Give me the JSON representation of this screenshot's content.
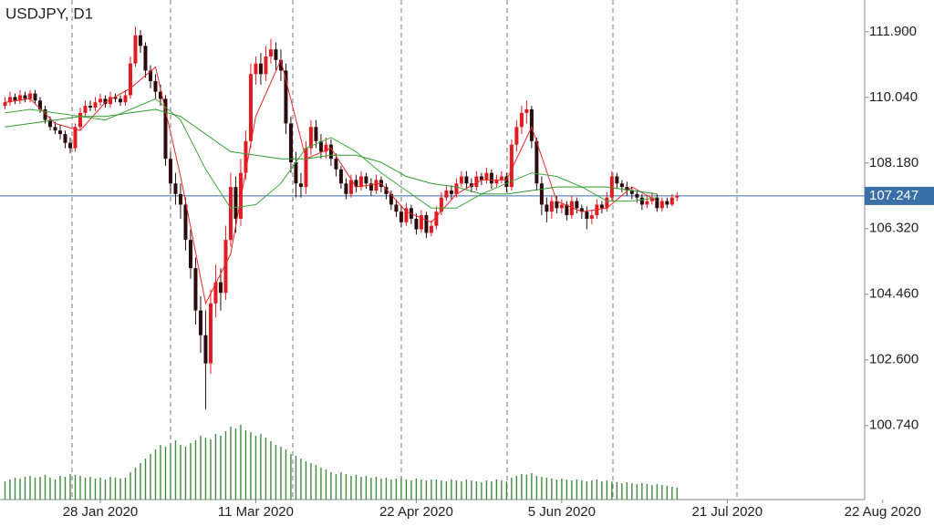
{
  "chart_data": {
    "type": "candlestick",
    "title": "USDJPY, D1",
    "up_color": "#e21b22",
    "down_color": "#2a0c0c",
    "open": [
      109.8,
      109.9,
      110.05,
      109.95,
      110.1,
      110.0,
      110.15,
      109.95,
      109.7,
      109.4,
      109.2,
      109.1,
      109.0,
      108.75,
      108.6,
      109.2,
      109.6,
      109.8,
      109.75,
      109.9,
      110.0,
      109.85,
      110.05,
      110.0,
      109.9,
      110.1,
      111.0,
      111.8,
      111.5,
      110.8,
      110.5,
      110.2,
      110.0,
      108.3,
      107.6,
      107.3,
      107.0,
      106.0,
      105.2,
      104.0,
      103.3,
      102.5,
      104.2,
      104.8,
      104.5,
      106.0,
      107.5,
      106.6,
      107.9,
      108.8,
      110.7,
      111.0,
      110.7,
      111.2,
      111.4,
      111.1,
      110.8,
      109.3,
      108.2,
      107.6,
      107.5,
      108.6,
      109.2,
      108.8,
      108.5,
      108.7,
      108.3,
      108.0,
      107.6,
      107.3,
      107.7,
      107.5,
      107.8,
      107.6,
      107.4,
      107.7,
      107.5,
      107.3,
      107.0,
      106.8,
      106.5,
      106.9,
      106.6,
      106.3,
      106.7,
      106.2,
      106.4,
      106.8,
      107.2,
      107.4,
      107.3,
      107.6,
      107.8,
      107.6,
      107.5,
      107.8,
      107.7,
      107.9,
      107.6,
      107.7,
      107.8,
      107.5,
      108.7,
      109.2,
      109.6,
      109.7,
      108.8,
      107.6,
      107.0,
      106.8,
      107.1,
      106.9,
      107.0,
      106.7,
      107.1,
      106.9,
      106.8,
      106.6,
      106.7,
      107.0,
      106.9,
      107.2,
      107.8,
      107.6,
      107.5,
      107.4,
      107.3,
      107.2,
      107.0,
      107.1,
      107.2,
      106.9,
      107.1,
      107.0,
      107.2
    ],
    "high": [
      110.05,
      110.2,
      110.15,
      110.25,
      110.2,
      110.25,
      110.25,
      110.05,
      109.8,
      109.5,
      109.35,
      109.25,
      109.1,
      108.9,
      109.3,
      109.75,
      109.95,
      109.95,
      110.05,
      110.15,
      110.1,
      110.2,
      110.15,
      110.1,
      110.25,
      111.2,
      112.05,
      111.95,
      111.6,
      110.95,
      110.7,
      110.4,
      110.1,
      108.5,
      107.9,
      107.6,
      107.2,
      106.3,
      105.5,
      104.4,
      104.0,
      104.6,
      105.3,
      105.2,
      106.4,
      107.9,
      107.8,
      108.3,
      109.1,
      111.0,
      111.2,
      111.3,
      111.5,
      111.7,
      111.6,
      111.4,
      111.0,
      109.5,
      108.5,
      107.9,
      108.8,
      109.4,
      109.4,
      109.0,
      108.9,
      108.85,
      108.45,
      108.1,
      107.75,
      107.85,
      107.85,
      107.95,
      107.9,
      107.75,
      107.85,
      107.8,
      107.6,
      107.4,
      107.15,
      106.95,
      107.05,
      107.0,
      106.75,
      106.85,
      106.8,
      106.55,
      106.95,
      107.35,
      107.55,
      107.55,
      107.75,
      107.95,
      107.95,
      107.75,
      107.95,
      107.9,
      108.05,
      108.0,
      107.85,
      107.95,
      107.9,
      108.85,
      109.4,
      109.8,
      109.95,
      109.8,
      108.9,
      107.8,
      107.2,
      107.25,
      107.25,
      107.15,
      107.1,
      107.25,
      107.2,
      107.0,
      106.95,
      106.85,
      107.15,
      107.1,
      107.35,
      107.95,
      107.9,
      107.7,
      107.65,
      107.5,
      107.4,
      107.3,
      107.25,
      107.35,
      107.3,
      107.2,
      107.2,
      107.3,
      107.35
    ],
    "low": [
      109.7,
      109.8,
      109.85,
      109.85,
      109.9,
      109.9,
      109.85,
      109.6,
      109.3,
      109.1,
      109.0,
      108.85,
      108.6,
      108.45,
      108.5,
      109.1,
      109.5,
      109.65,
      109.65,
      109.8,
      109.75,
      109.75,
      109.9,
      109.8,
      109.8,
      110.0,
      110.9,
      111.3,
      110.6,
      110.3,
      110.0,
      109.8,
      108.1,
      107.3,
      107.0,
      106.6,
      105.7,
      104.9,
      103.6,
      102.8,
      101.2,
      102.2,
      103.8,
      104.0,
      104.3,
      105.8,
      106.2,
      106.4,
      107.7,
      108.6,
      110.4,
      110.4,
      110.5,
      111.0,
      110.8,
      110.5,
      109.0,
      107.9,
      107.2,
      107.2,
      107.3,
      108.4,
      108.6,
      108.3,
      108.3,
      108.1,
      107.8,
      107.45,
      107.15,
      107.2,
      107.35,
      107.4,
      107.45,
      107.25,
      107.3,
      107.35,
      107.15,
      106.85,
      106.65,
      106.35,
      106.4,
      106.45,
      106.15,
      106.2,
      106.05,
      106.1,
      106.3,
      106.7,
      107.1,
      107.15,
      107.2,
      107.5,
      107.45,
      107.35,
      107.4,
      107.55,
      107.6,
      107.45,
      107.5,
      107.6,
      107.35,
      107.4,
      108.5,
      109.0,
      109.3,
      108.6,
      107.4,
      106.7,
      106.5,
      106.6,
      106.75,
      106.75,
      106.55,
      106.6,
      106.75,
      106.6,
      106.3,
      106.45,
      106.6,
      106.75,
      106.8,
      107.1,
      107.45,
      107.35,
      107.25,
      107.15,
      107.05,
      106.85,
      106.9,
      107.0,
      106.8,
      106.8,
      106.9,
      106.95,
      107.1
    ],
    "close": [
      109.9,
      110.05,
      109.95,
      110.1,
      110.0,
      110.15,
      109.95,
      109.7,
      109.4,
      109.2,
      109.1,
      109.0,
      108.75,
      108.6,
      109.2,
      109.6,
      109.8,
      109.75,
      109.9,
      110.0,
      109.85,
      110.05,
      110.0,
      109.9,
      110.1,
      111.0,
      111.8,
      111.5,
      110.8,
      110.5,
      110.2,
      110.0,
      108.3,
      107.6,
      107.3,
      107.0,
      106.0,
      105.2,
      104.0,
      103.3,
      102.5,
      104.2,
      104.8,
      104.5,
      106.0,
      107.5,
      106.6,
      107.9,
      108.8,
      110.7,
      111.0,
      110.7,
      111.2,
      111.4,
      111.1,
      110.8,
      109.3,
      108.2,
      107.6,
      107.5,
      108.6,
      109.2,
      108.8,
      108.5,
      108.7,
      108.3,
      108.0,
      107.6,
      107.3,
      107.7,
      107.5,
      107.8,
      107.6,
      107.4,
      107.7,
      107.5,
      107.3,
      107.0,
      106.8,
      106.5,
      106.9,
      106.6,
      106.3,
      106.7,
      106.2,
      106.4,
      106.8,
      107.2,
      107.4,
      107.3,
      107.6,
      107.8,
      107.6,
      107.5,
      107.8,
      107.7,
      107.9,
      107.6,
      107.7,
      107.8,
      107.5,
      108.7,
      109.2,
      109.6,
      109.7,
      108.8,
      107.6,
      107.0,
      106.8,
      107.1,
      106.9,
      107.0,
      106.7,
      107.1,
      106.9,
      106.8,
      106.6,
      106.7,
      107.0,
      106.9,
      107.2,
      107.8,
      107.6,
      107.5,
      107.4,
      107.3,
      107.2,
      107.0,
      107.1,
      107.2,
      106.9,
      107.1,
      107.0,
      107.2,
      107.25
    ],
    "volume": [
      20,
      22,
      24,
      23,
      25,
      26,
      24,
      25,
      27,
      24,
      22,
      26,
      25,
      28,
      27,
      26,
      24,
      25,
      23,
      24,
      22,
      25,
      24,
      23,
      24,
      30,
      35,
      40,
      45,
      50,
      55,
      60,
      58,
      62,
      65,
      60,
      58,
      62,
      65,
      70,
      68,
      66,
      72,
      70,
      75,
      80,
      78,
      82,
      76,
      74,
      70,
      72,
      68,
      64,
      60,
      58,
      55,
      50,
      48,
      45,
      42,
      40,
      38,
      35,
      33,
      30,
      28,
      30,
      28,
      26,
      27,
      25,
      26,
      24,
      25,
      23,
      24,
      22,
      23,
      24,
      22,
      21,
      23,
      22,
      21,
      22,
      22,
      21,
      20,
      22,
      21,
      20,
      22,
      21,
      20,
      19,
      21,
      20,
      22,
      21,
      20,
      24,
      26,
      28,
      27,
      29,
      26,
      25,
      24,
      23,
      22,
      23,
      22,
      21,
      22,
      21,
      20,
      21,
      22,
      20,
      21,
      20,
      19,
      18,
      19,
      18,
      17,
      18,
      17,
      16,
      17,
      16,
      15,
      14,
      13
    ],
    "volume_color": "#3f8a3f",
    "lines": [
      {
        "color": "#e8262a",
        "x": [
          0,
          5,
          10,
          15,
          20,
          25,
          30,
          35,
          40,
          45,
          50,
          55,
          60,
          65,
          70,
          75,
          80,
          85,
          90,
          95,
          100,
          105,
          110,
          115,
          120,
          125,
          130
        ],
        "values": [
          109.9,
          110.0,
          109.3,
          109.1,
          109.9,
          110.3,
          110.9,
          107.8,
          104.2,
          105.6,
          109.5,
          111.1,
          108.3,
          108.6,
          107.5,
          107.6,
          106.8,
          106.5,
          107.3,
          107.7,
          107.7,
          109.2,
          107.1,
          106.8,
          106.9,
          107.5,
          107.1
        ]
      },
      {
        "color": "#3aa63a",
        "x": [
          0,
          5,
          10,
          15,
          20,
          25,
          30,
          35,
          40,
          45,
          50,
          55,
          60,
          65,
          70,
          75,
          80,
          85,
          90,
          95,
          100,
          105,
          110,
          115,
          120,
          125,
          130
        ],
        "values": [
          109.6,
          109.7,
          109.6,
          109.5,
          109.4,
          109.7,
          110.0,
          109.4,
          108.0,
          106.9,
          107.0,
          107.6,
          108.6,
          108.9,
          108.5,
          107.9,
          107.4,
          106.9,
          106.9,
          107.3,
          107.6,
          107.9,
          107.8,
          107.5,
          107.1,
          107.1,
          107.2
        ]
      },
      {
        "color": "#2e9a2e",
        "x": [
          0,
          5,
          10,
          15,
          20,
          25,
          30,
          35,
          40,
          45,
          50,
          55,
          60,
          65,
          70,
          75,
          80,
          85,
          90,
          95,
          100,
          105,
          110,
          115,
          120,
          125,
          130
        ],
        "values": [
          109.2,
          109.3,
          109.4,
          109.5,
          109.5,
          109.6,
          109.7,
          109.5,
          109.0,
          108.5,
          108.4,
          108.3,
          108.3,
          108.4,
          108.4,
          108.2,
          107.8,
          107.6,
          107.5,
          107.3,
          107.3,
          107.4,
          107.5,
          107.5,
          107.5,
          107.4,
          107.3
        ]
      }
    ],
    "last_price": 107.247,
    "last_price_color": "#3a6fa8",
    "ylim": [
      98.64,
      112.8
    ],
    "yticks": [
      {
        "value": 111.9,
        "label": "111.900"
      },
      {
        "value": 110.04,
        "label": "110.040"
      },
      {
        "value": 108.18,
        "label": "108.180"
      },
      {
        "value": 106.32,
        "label": "106.320"
      },
      {
        "value": 104.46,
        "label": "104.460"
      },
      {
        "value": 102.6,
        "label": "102.600"
      },
      {
        "value": 100.74,
        "label": "100.740"
      }
    ],
    "xlim": [
      -1,
      171.4
    ],
    "xticks": [
      {
        "value": 19,
        "label": "28 Jan 2020"
      },
      {
        "value": 50,
        "label": "11 Mar 2020"
      },
      {
        "value": 82,
        "label": "22 Apr 2020"
      },
      {
        "value": 111,
        "label": "5 Jun 2020"
      },
      {
        "value": 144,
        "label": "21 Jul 2020"
      },
      {
        "value": 175,
        "label": "22 Aug 2020"
      }
    ]
  }
}
